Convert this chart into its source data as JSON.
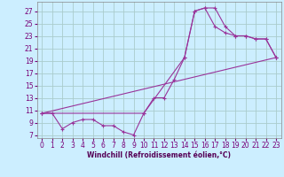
{
  "bg_color": "#cceeff",
  "grid_color": "#aacccc",
  "line_color": "#993399",
  "xlim": [
    -0.5,
    23.5
  ],
  "ylim": [
    6.5,
    28.5
  ],
  "xticks": [
    0,
    1,
    2,
    3,
    4,
    5,
    6,
    7,
    8,
    9,
    10,
    11,
    12,
    13,
    14,
    15,
    16,
    17,
    18,
    19,
    20,
    21,
    22,
    23
  ],
  "yticks": [
    7,
    9,
    11,
    13,
    15,
    17,
    19,
    21,
    23,
    25,
    27
  ],
  "xlabel": "Windchill (Refroidissement éolien,°C)",
  "line1_x": [
    0,
    1,
    2,
    3,
    4,
    5,
    6,
    7,
    8,
    9,
    10,
    11,
    12,
    13,
    14,
    15,
    16,
    17,
    18,
    19,
    20,
    21,
    22,
    23
  ],
  "line1_y": [
    10.5,
    10.5,
    8.0,
    9.0,
    9.5,
    9.5,
    8.5,
    8.5,
    7.5,
    7.0,
    10.5,
    13.0,
    13.0,
    16.0,
    19.5,
    27.0,
    27.5,
    27.5,
    24.5,
    23.0,
    23.0,
    22.5,
    22.5,
    19.5
  ],
  "line2_x": [
    0,
    23
  ],
  "line2_y": [
    10.5,
    19.5
  ],
  "line3_x": [
    0,
    10,
    14,
    15,
    16,
    17,
    18,
    19,
    20,
    21,
    22,
    23
  ],
  "line3_y": [
    10.5,
    10.5,
    19.5,
    27.0,
    27.5,
    24.5,
    23.5,
    23.0,
    23.0,
    22.5,
    22.5,
    19.5
  ],
  "tick_fontsize": 5.5,
  "xlabel_fontsize": 5.5,
  "tick_color": "#770077",
  "label_color": "#550055"
}
